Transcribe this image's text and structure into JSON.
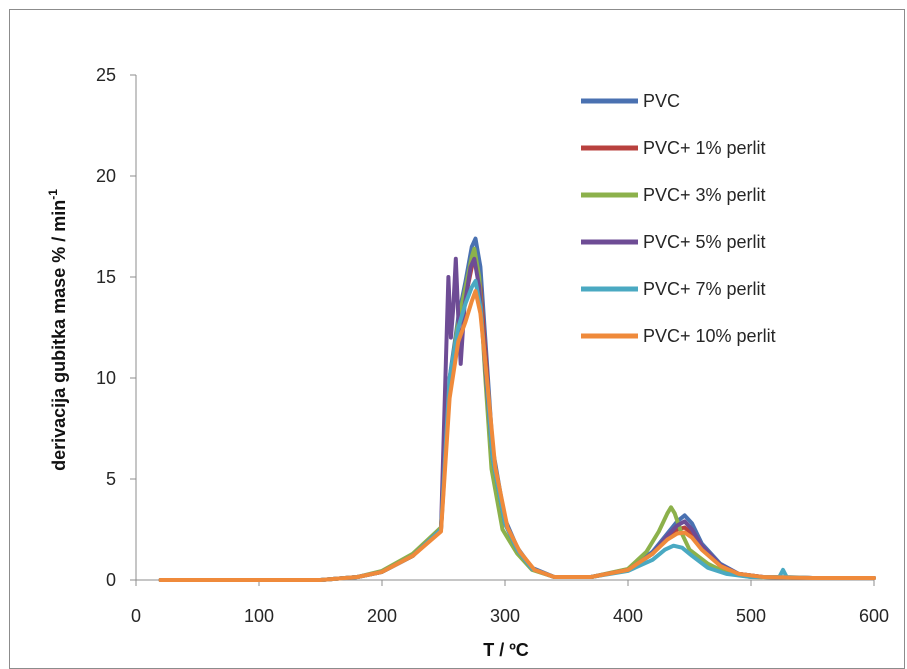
{
  "chart_data": {
    "type": "line",
    "xlabel": "T / ºC",
    "ylabel_main": "derivacija  gubitka mase  % / min",
    "ylabel_sup": "-1",
    "xlim": [
      0,
      600
    ],
    "ylim": [
      0,
      25
    ],
    "x_ticks": [
      0,
      100,
      200,
      300,
      400,
      500,
      600
    ],
    "y_ticks": [
      0,
      5,
      10,
      15,
      20,
      25
    ],
    "grid": false,
    "legend_position": "top-right",
    "series": [
      {
        "name": "PVC",
        "color": "#4a71b1",
        "points": [
          [
            20,
            0
          ],
          [
            150,
            0
          ],
          [
            180,
            0.15
          ],
          [
            200,
            0.4
          ],
          [
            225,
            1.2
          ],
          [
            248,
            2.6
          ],
          [
            255,
            10
          ],
          [
            262,
            13
          ],
          [
            268,
            14.8
          ],
          [
            273,
            16.5
          ],
          [
            276,
            16.9
          ],
          [
            280,
            15.5
          ],
          [
            285,
            11
          ],
          [
            290,
            6.5
          ],
          [
            300,
            3
          ],
          [
            310,
            1.6
          ],
          [
            322,
            0.6
          ],
          [
            340,
            0.15
          ],
          [
            370,
            0.15
          ],
          [
            400,
            0.5
          ],
          [
            420,
            1.4
          ],
          [
            432,
            2.3
          ],
          [
            440,
            2.9
          ],
          [
            446,
            3.2
          ],
          [
            452,
            2.8
          ],
          [
            460,
            1.8
          ],
          [
            475,
            0.8
          ],
          [
            490,
            0.3
          ],
          [
            510,
            0.15
          ],
          [
            550,
            0.1
          ],
          [
            600,
            0.1
          ]
        ]
      },
      {
        "name": "PVC+ 1% perlit",
        "color": "#b8413e",
        "points": [
          [
            20,
            0
          ],
          [
            150,
            0
          ],
          [
            180,
            0.15
          ],
          [
            200,
            0.4
          ],
          [
            225,
            1.2
          ],
          [
            248,
            2.5
          ],
          [
            255,
            9.5
          ],
          [
            262,
            12.5
          ],
          [
            268,
            14
          ],
          [
            273,
            15.5
          ],
          [
            276,
            16
          ],
          [
            280,
            14.5
          ],
          [
            285,
            10.5
          ],
          [
            290,
            6
          ],
          [
            300,
            2.8
          ],
          [
            310,
            1.5
          ],
          [
            322,
            0.55
          ],
          [
            340,
            0.15
          ],
          [
            370,
            0.15
          ],
          [
            400,
            0.5
          ],
          [
            420,
            1.3
          ],
          [
            432,
            2.1
          ],
          [
            440,
            2.5
          ],
          [
            446,
            2.6
          ],
          [
            452,
            2.3
          ],
          [
            460,
            1.6
          ],
          [
            475,
            0.7
          ],
          [
            490,
            0.3
          ],
          [
            510,
            0.15
          ],
          [
            550,
            0.1
          ],
          [
            600,
            0.1
          ]
        ]
      },
      {
        "name": "PVC+ 3% perlit",
        "color": "#8cb14b",
        "points": [
          [
            20,
            0
          ],
          [
            150,
            0
          ],
          [
            180,
            0.15
          ],
          [
            200,
            0.45
          ],
          [
            225,
            1.3
          ],
          [
            248,
            2.6
          ],
          [
            255,
            9.8
          ],
          [
            262,
            12.8
          ],
          [
            268,
            14.5
          ],
          [
            273,
            16
          ],
          [
            275,
            16.4
          ],
          [
            279,
            15
          ],
          [
            284,
            10
          ],
          [
            289,
            5.5
          ],
          [
            298,
            2.5
          ],
          [
            310,
            1.3
          ],
          [
            322,
            0.5
          ],
          [
            340,
            0.15
          ],
          [
            370,
            0.15
          ],
          [
            400,
            0.55
          ],
          [
            415,
            1.4
          ],
          [
            425,
            2.4
          ],
          [
            432,
            3.3
          ],
          [
            435,
            3.6
          ],
          [
            438,
            3.3
          ],
          [
            443,
            2.4
          ],
          [
            450,
            1.5
          ],
          [
            465,
            0.8
          ],
          [
            480,
            0.35
          ],
          [
            500,
            0.15
          ],
          [
            550,
            0.1
          ],
          [
            600,
            0.1
          ]
        ]
      },
      {
        "name": "PVC+ 5% perlit",
        "color": "#6e4c95",
        "points": [
          [
            20,
            0
          ],
          [
            150,
            0
          ],
          [
            180,
            0.15
          ],
          [
            200,
            0.4
          ],
          [
            225,
            1.2
          ],
          [
            248,
            2.5
          ],
          [
            252,
            11
          ],
          [
            254,
            15
          ],
          [
            256,
            12
          ],
          [
            258,
            13.5
          ],
          [
            260,
            15.9
          ],
          [
            262,
            13
          ],
          [
            264,
            10.7
          ],
          [
            267,
            13.5
          ],
          [
            272,
            15.5
          ],
          [
            275,
            15.9
          ],
          [
            279,
            14.5
          ],
          [
            284,
            10.5
          ],
          [
            290,
            6
          ],
          [
            300,
            2.8
          ],
          [
            310,
            1.5
          ],
          [
            322,
            0.55
          ],
          [
            340,
            0.15
          ],
          [
            370,
            0.15
          ],
          [
            400,
            0.5
          ],
          [
            420,
            1.3
          ],
          [
            432,
            2.2
          ],
          [
            440,
            2.7
          ],
          [
            446,
            2.9
          ],
          [
            452,
            2.5
          ],
          [
            460,
            1.7
          ],
          [
            475,
            0.75
          ],
          [
            490,
            0.3
          ],
          [
            510,
            0.15
          ],
          [
            550,
            0.1
          ],
          [
            600,
            0.1
          ]
        ]
      },
      {
        "name": "PVC+ 7% perlit",
        "color": "#4aa9c2",
        "points": [
          [
            20,
            0
          ],
          [
            150,
            0
          ],
          [
            180,
            0.15
          ],
          [
            200,
            0.4
          ],
          [
            225,
            1.2
          ],
          [
            248,
            2.5
          ],
          [
            255,
            10
          ],
          [
            262,
            12.5
          ],
          [
            268,
            13.7
          ],
          [
            273,
            14.5
          ],
          [
            276,
            14.8
          ],
          [
            280,
            13.5
          ],
          [
            285,
            10
          ],
          [
            290,
            6
          ],
          [
            300,
            2.8
          ],
          [
            310,
            1.5
          ],
          [
            322,
            0.55
          ],
          [
            340,
            0.15
          ],
          [
            370,
            0.15
          ],
          [
            400,
            0.45
          ],
          [
            420,
            1
          ],
          [
            430,
            1.5
          ],
          [
            437,
            1.7
          ],
          [
            444,
            1.6
          ],
          [
            452,
            1.2
          ],
          [
            465,
            0.6
          ],
          [
            480,
            0.3
          ],
          [
            500,
            0.15
          ],
          [
            523,
            0.15
          ],
          [
            526,
            0.5
          ],
          [
            529,
            0.15
          ],
          [
            550,
            0.1
          ],
          [
            600,
            0.1
          ]
        ]
      },
      {
        "name": "PVC+ 10% perlit",
        "color": "#ef8a3b",
        "points": [
          [
            20,
            0
          ],
          [
            150,
            0
          ],
          [
            180,
            0.15
          ],
          [
            200,
            0.4
          ],
          [
            225,
            1.2
          ],
          [
            248,
            2.4
          ],
          [
            255,
            9
          ],
          [
            262,
            11.8
          ],
          [
            268,
            12.8
          ],
          [
            273,
            13.8
          ],
          [
            276,
            14.3
          ],
          [
            280,
            13.2
          ],
          [
            286,
            9.5
          ],
          [
            292,
            5.6
          ],
          [
            302,
            2.6
          ],
          [
            312,
            1.4
          ],
          [
            324,
            0.5
          ],
          [
            340,
            0.15
          ],
          [
            370,
            0.15
          ],
          [
            400,
            0.5
          ],
          [
            420,
            1.3
          ],
          [
            432,
            2
          ],
          [
            440,
            2.3
          ],
          [
            446,
            2.35
          ],
          [
            452,
            2.1
          ],
          [
            460,
            1.5
          ],
          [
            475,
            0.7
          ],
          [
            490,
            0.3
          ],
          [
            510,
            0.15
          ],
          [
            550,
            0.1
          ],
          [
            600,
            0.1
          ]
        ]
      }
    ]
  }
}
